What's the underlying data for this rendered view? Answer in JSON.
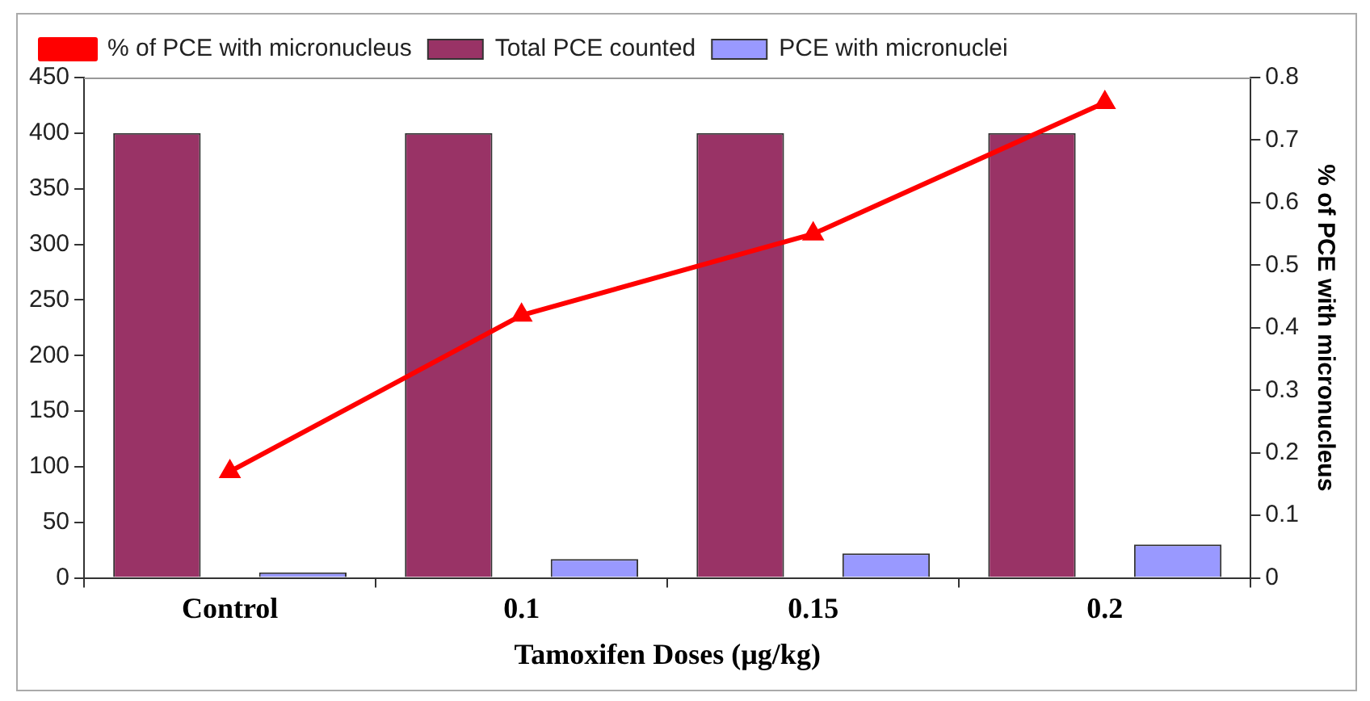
{
  "chart_data": {
    "type": "bar",
    "xlabel": "Tamoxifen Doses (µg/kg)",
    "y2label": "% of PCE with micronucleus",
    "categories": [
      "Control",
      "0.1",
      "0.15",
      "0.2"
    ],
    "series": [
      {
        "name": "Total PCE counted",
        "color": "#993366",
        "values": [
          400,
          400,
          400,
          400
        ]
      },
      {
        "name": "PCE with micronuclei",
        "color": "#9999ff",
        "values": [
          5,
          17,
          22,
          30
        ]
      },
      {
        "name": "% of PCE with micronucleus",
        "type": "line",
        "axis": "y2",
        "color": "#ff0000",
        "marker": "triangle",
        "values": [
          0.17,
          0.42,
          0.55,
          0.76
        ]
      }
    ],
    "ylim": [
      0,
      450
    ],
    "yticks": [
      0,
      50,
      100,
      150,
      200,
      250,
      300,
      350,
      400,
      450
    ],
    "y2lim": [
      0,
      0.8
    ],
    "y2ticks": [
      0,
      0.1,
      0.2,
      0.3,
      0.4,
      0.5,
      0.6,
      0.7,
      0.8
    ],
    "grid": false,
    "legend": "top"
  }
}
